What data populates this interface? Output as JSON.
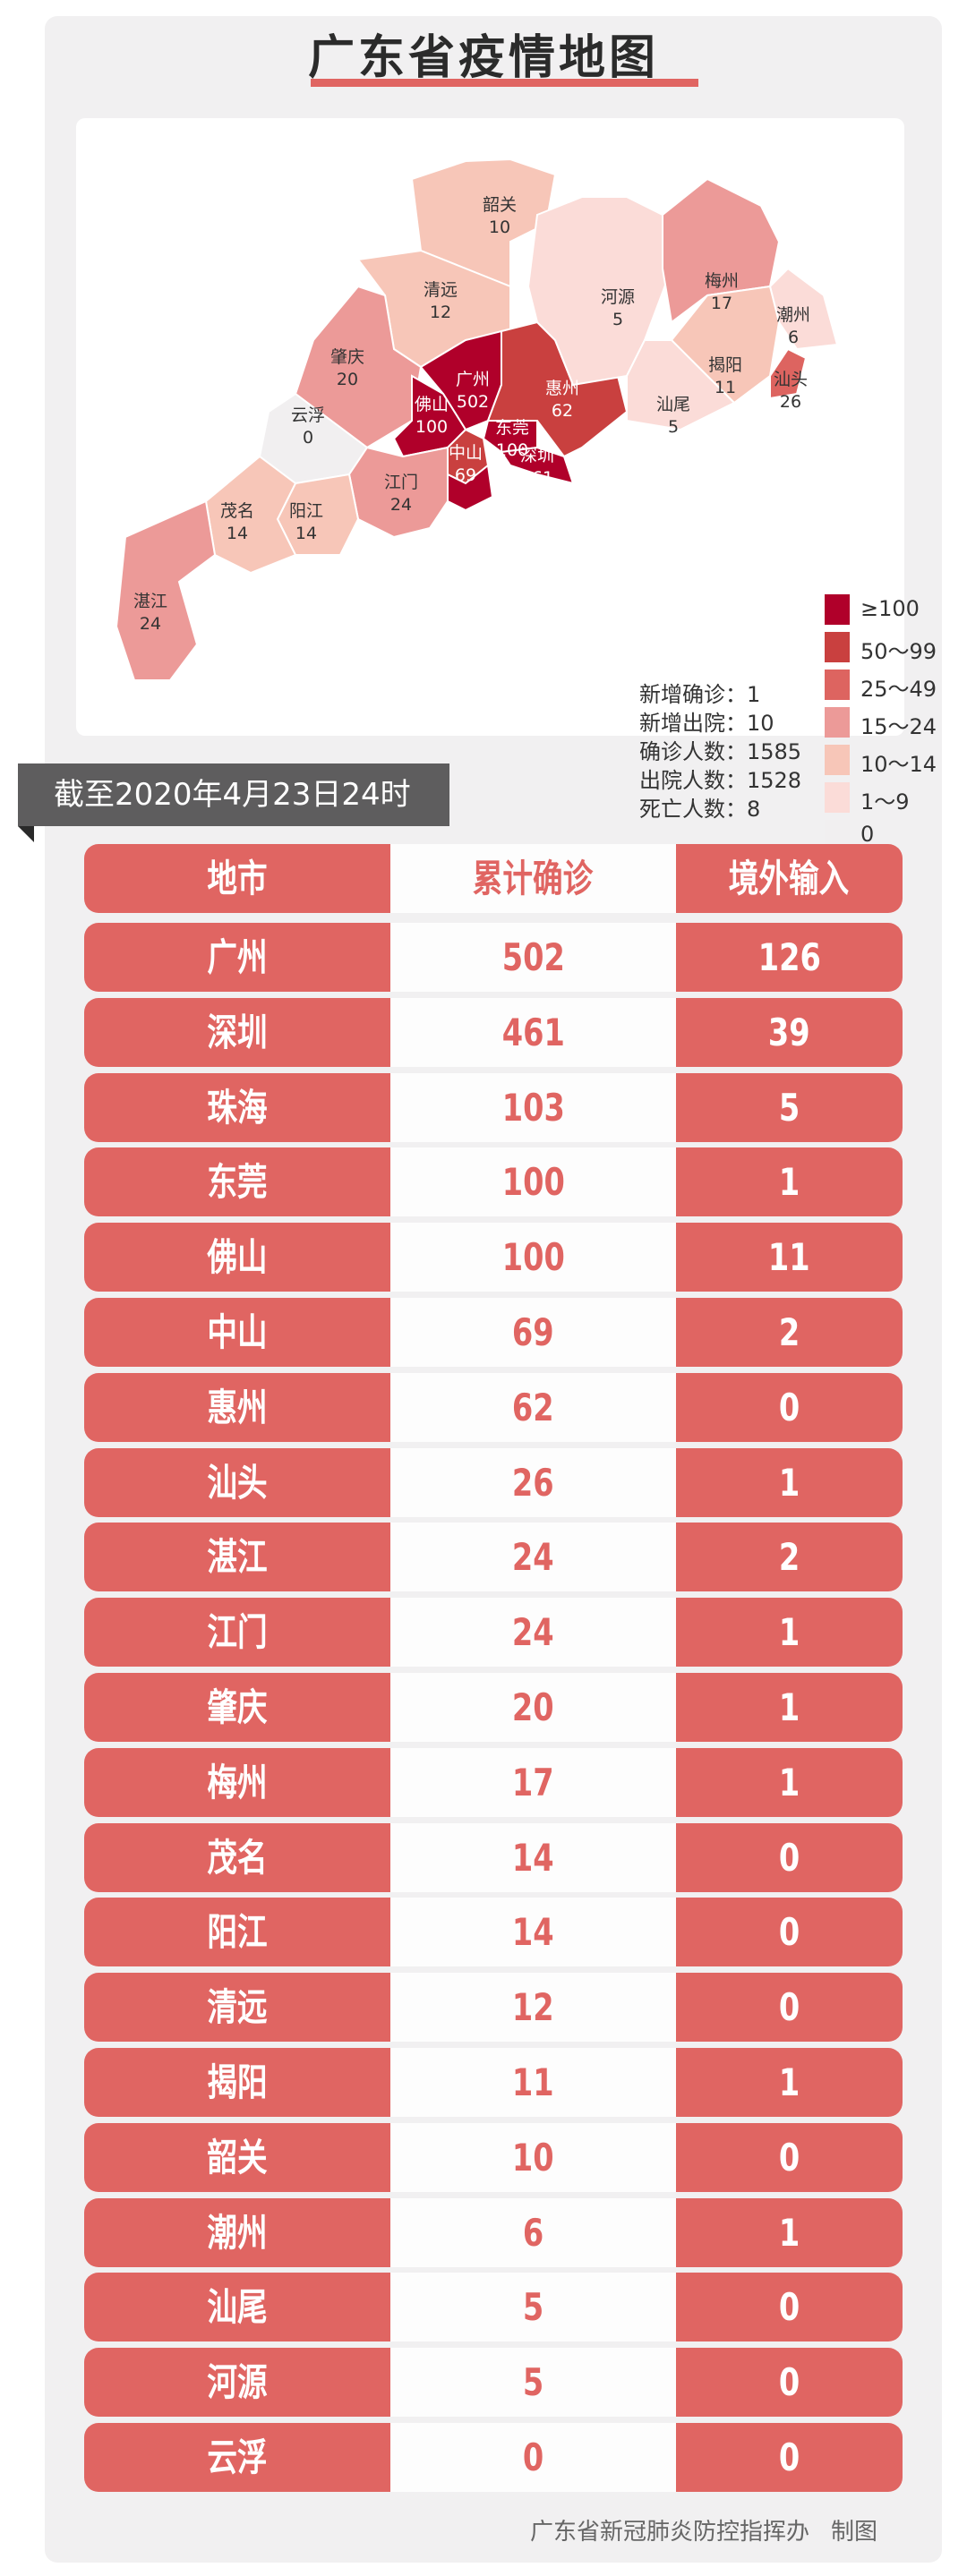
{
  "title": "广东省疫情地图",
  "map": {
    "regions": [
      {
        "name": "韶关",
        "value": "10"
      },
      {
        "name": "清远",
        "value": "12"
      },
      {
        "name": "肇庆",
        "value": "20"
      },
      {
        "name": "云浮",
        "value": "0"
      },
      {
        "name": "广州",
        "value": "502"
      },
      {
        "name": "佛山",
        "value": "100"
      },
      {
        "name": "东莞",
        "value": "100"
      },
      {
        "name": "深圳",
        "value": "461"
      },
      {
        "name": "中山",
        "value": "69"
      },
      {
        "name": "珠海",
        "value": "103"
      },
      {
        "name": "惠州",
        "value": "62"
      },
      {
        "name": "河源",
        "value": "5"
      },
      {
        "name": "梅州",
        "value": "17"
      },
      {
        "name": "潮州",
        "value": "6"
      },
      {
        "name": "揭阳",
        "value": "11"
      },
      {
        "name": "汕头",
        "value": "26"
      },
      {
        "name": "汕尾",
        "value": "5"
      },
      {
        "name": "江门",
        "value": "24"
      },
      {
        "name": "阳江",
        "value": "14"
      },
      {
        "name": "茂名",
        "value": "14"
      },
      {
        "name": "湛江",
        "value": "24"
      }
    ],
    "stats": [
      {
        "label": "新增确诊",
        "value": "1"
      },
      {
        "label": "新增出院",
        "value": "10"
      },
      {
        "label": "确诊人数",
        "value": "1585"
      },
      {
        "label": "出院人数",
        "value": "1528"
      },
      {
        "label": "死亡人数",
        "value": "8"
      }
    ],
    "legend": [
      {
        "label": "≥100",
        "color": "#b0002a"
      },
      {
        "label": "50～99",
        "color": "#c9403f"
      },
      {
        "label": "25～49",
        "color": "#dd6460"
      },
      {
        "label": "15～24",
        "color": "#ec9a98"
      },
      {
        "label": "10～14",
        "color": "#f7c6b8"
      },
      {
        "label": "1～9",
        "color": "#fbdcd8"
      },
      {
        "label": "0",
        "color": "#f1eff0"
      }
    ]
  },
  "as_of": "截至2020年4月23日24时",
  "table": {
    "headers": [
      "地市",
      "累计确诊",
      "境外输入"
    ],
    "rows": [
      [
        "广州",
        "502",
        "126"
      ],
      [
        "深圳",
        "461",
        "39"
      ],
      [
        "珠海",
        "103",
        "5"
      ],
      [
        "东莞",
        "100",
        "1"
      ],
      [
        "佛山",
        "100",
        "11"
      ],
      [
        "中山",
        "69",
        "2"
      ],
      [
        "惠州",
        "62",
        "0"
      ],
      [
        "汕头",
        "26",
        "1"
      ],
      [
        "湛江",
        "24",
        "2"
      ],
      [
        "江门",
        "24",
        "1"
      ],
      [
        "肇庆",
        "20",
        "1"
      ],
      [
        "梅州",
        "17",
        "1"
      ],
      [
        "茂名",
        "14",
        "0"
      ],
      [
        "阳江",
        "14",
        "0"
      ],
      [
        "清远",
        "12",
        "0"
      ],
      [
        "揭阳",
        "11",
        "1"
      ],
      [
        "韶关",
        "10",
        "0"
      ],
      [
        "潮州",
        "6",
        "1"
      ],
      [
        "汕尾",
        "5",
        "0"
      ],
      [
        "河源",
        "5",
        "0"
      ],
      [
        "云浮",
        "0",
        "0"
      ]
    ]
  },
  "footer": {
    "org": "广东省新冠肺炎防控指挥办",
    "suffix": "制图"
  },
  "colors": {
    "accent": "#e06562",
    "banner": "#5e5d5e",
    "panel": "#f1f0f1"
  }
}
